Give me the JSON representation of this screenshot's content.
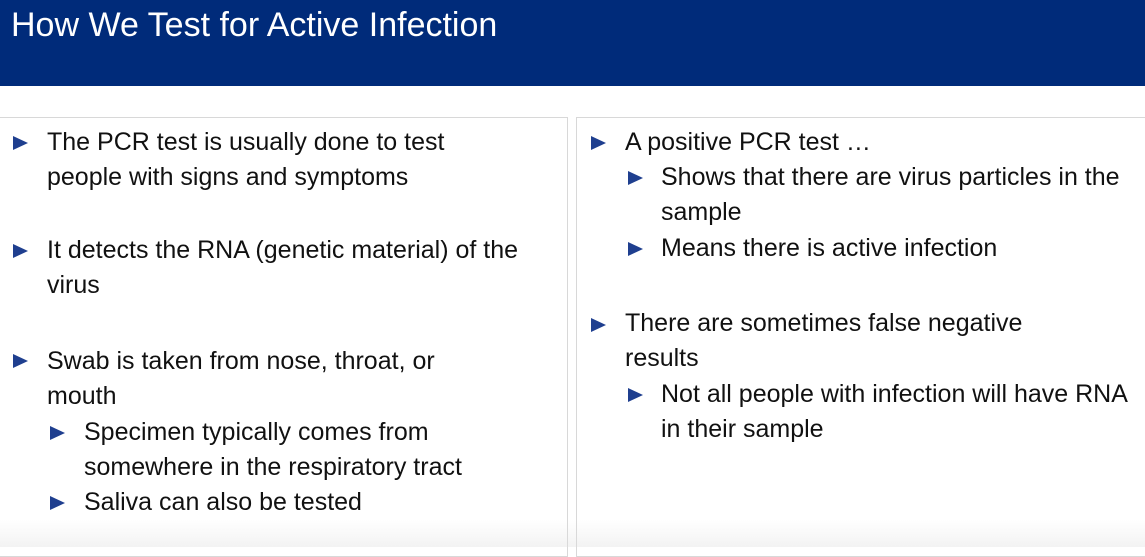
{
  "slide": {
    "title": "How We Test for Active Infection"
  },
  "left_panel": {
    "bullet_1": "The PCR test is usually done to test people with signs and symptoms",
    "bullet_2": "It detects the RNA (genetic material) of the virus",
    "bullet_3": "Swab is taken from nose, throat, or mouth",
    "sub_bullet_3_1": "Specimen typically comes from somewhere in the respiratory tract",
    "sub_bullet_3_2": "Saliva can also be tested"
  },
  "right_panel": {
    "bullet_1": "A positive PCR test …",
    "sub_bullet_1_1": "Shows that there are virus particles in the sample",
    "sub_bullet_1_2": "Means there is active infection",
    "bullet_2": "There are sometimes false negative results",
    "sub_bullet_2_1": "Not all people with infection will have RNA in their sample"
  },
  "colors": {
    "title_bar": "#002b7a",
    "bullet_arrow": "#1f3f8f"
  },
  "icons": {
    "bullet": "triangle-right-icon"
  }
}
